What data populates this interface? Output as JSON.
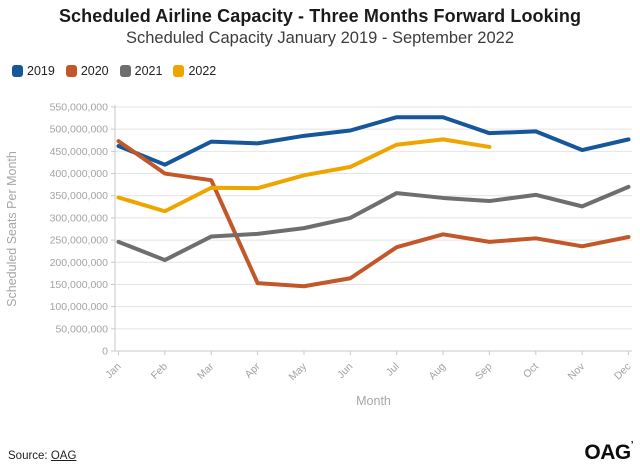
{
  "chart_data": {
    "type": "line",
    "title": "Scheduled Airline Capacity - Three Months Forward Looking",
    "subtitle": "Scheduled Capacity January 2019 - September 2022",
    "xlabel": "Month",
    "ylabel": "Scheduled Seats Per Month",
    "categories": [
      "Jan",
      "Feb",
      "Mar",
      "Apr",
      "May",
      "Jun",
      "Jul",
      "Aug",
      "Sep",
      "Oct",
      "Nov",
      "Dec"
    ],
    "ylim": [
      0,
      550000000
    ],
    "ytick_step": 50000000,
    "grid": "horizontal",
    "legend_position": "top-left",
    "series": [
      {
        "name": "2019",
        "color": "#16569b",
        "values": [
          462000000,
          420000000,
          472000000,
          468000000,
          485000000,
          497000000,
          527000000,
          527000000,
          491000000,
          495000000,
          453000000,
          477000000
        ]
      },
      {
        "name": "2020",
        "color": "#c2572a",
        "values": [
          473000000,
          400000000,
          385000000,
          153000000,
          146000000,
          164000000,
          234000000,
          263000000,
          246000000,
          254000000,
          236000000,
          257000000
        ]
      },
      {
        "name": "2021",
        "color": "#6e6e6e",
        "values": [
          246000000,
          205000000,
          258000000,
          264000000,
          277000000,
          300000000,
          356000000,
          345000000,
          338000000,
          352000000,
          326000000,
          370000000
        ]
      },
      {
        "name": "2022",
        "color": "#efa500",
        "values": [
          346000000,
          315000000,
          368000000,
          367000000,
          396000000,
          415000000,
          465000000,
          477000000,
          460000000
        ]
      }
    ],
    "colors": {
      "grid": "#e4e4e4",
      "axis": "#c9c9c9",
      "tick_text": "#a3a3a3",
      "axis_title_text": "#a6a6a6"
    }
  },
  "footer": {
    "source_label": "Source:",
    "source_link": "OAG",
    "logo_text": "OAG",
    "logo_mark": "’"
  }
}
